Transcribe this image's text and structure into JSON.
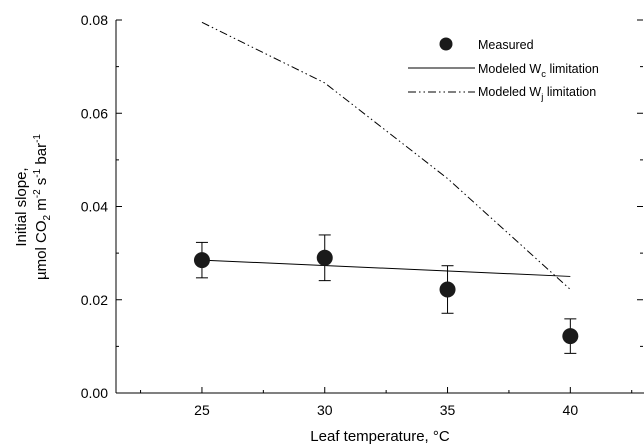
{
  "chart_data": {
    "type": "scatter",
    "xlabel": "Leaf temperature, °C",
    "ylabel_line1": "Initial slope,",
    "ylabel_line2": {
      "pre": "µmol CO",
      "sub": "2",
      "mid1": " m",
      "sup1": "-2",
      "mid2": " s",
      "sup2": "-1",
      "mid3": " bar",
      "sup3": "-1"
    },
    "xlim": [
      21.5,
      43
    ],
    "ylim": [
      0,
      0.08
    ],
    "xticks": [
      25,
      30,
      35,
      40
    ],
    "xtick_labels": [
      "25",
      "30",
      "35",
      "40"
    ],
    "yticks": [
      0,
      0.02,
      0.04,
      0.06,
      0.08
    ],
    "ytick_labels": [
      "0.00",
      "0.02",
      "0.04",
      "0.06",
      "0.08"
    ],
    "grid": false,
    "legend_position": "top-right",
    "series": [
      {
        "name": "Measured",
        "kind": "points-with-error-bars",
        "x": [
          25,
          30,
          35,
          40
        ],
        "y": [
          0.0285,
          0.029,
          0.0222,
          0.0122
        ],
        "yerr": [
          0.0038,
          0.0049,
          0.0051,
          0.0037
        ]
      },
      {
        "name": "Modeled W",
        "name_sub": "c",
        "name_suffix": " limitation",
        "kind": "solid-line",
        "x": [
          25,
          40
        ],
        "y": [
          0.0285,
          0.025
        ]
      },
      {
        "name": "Modeled W",
        "name_sub": "j",
        "name_suffix": " limitation",
        "kind": "dash-dot-dot-line",
        "x": [
          25,
          30,
          35,
          40
        ],
        "y": [
          0.0795,
          0.0665,
          0.046,
          0.0222
        ]
      }
    ]
  }
}
